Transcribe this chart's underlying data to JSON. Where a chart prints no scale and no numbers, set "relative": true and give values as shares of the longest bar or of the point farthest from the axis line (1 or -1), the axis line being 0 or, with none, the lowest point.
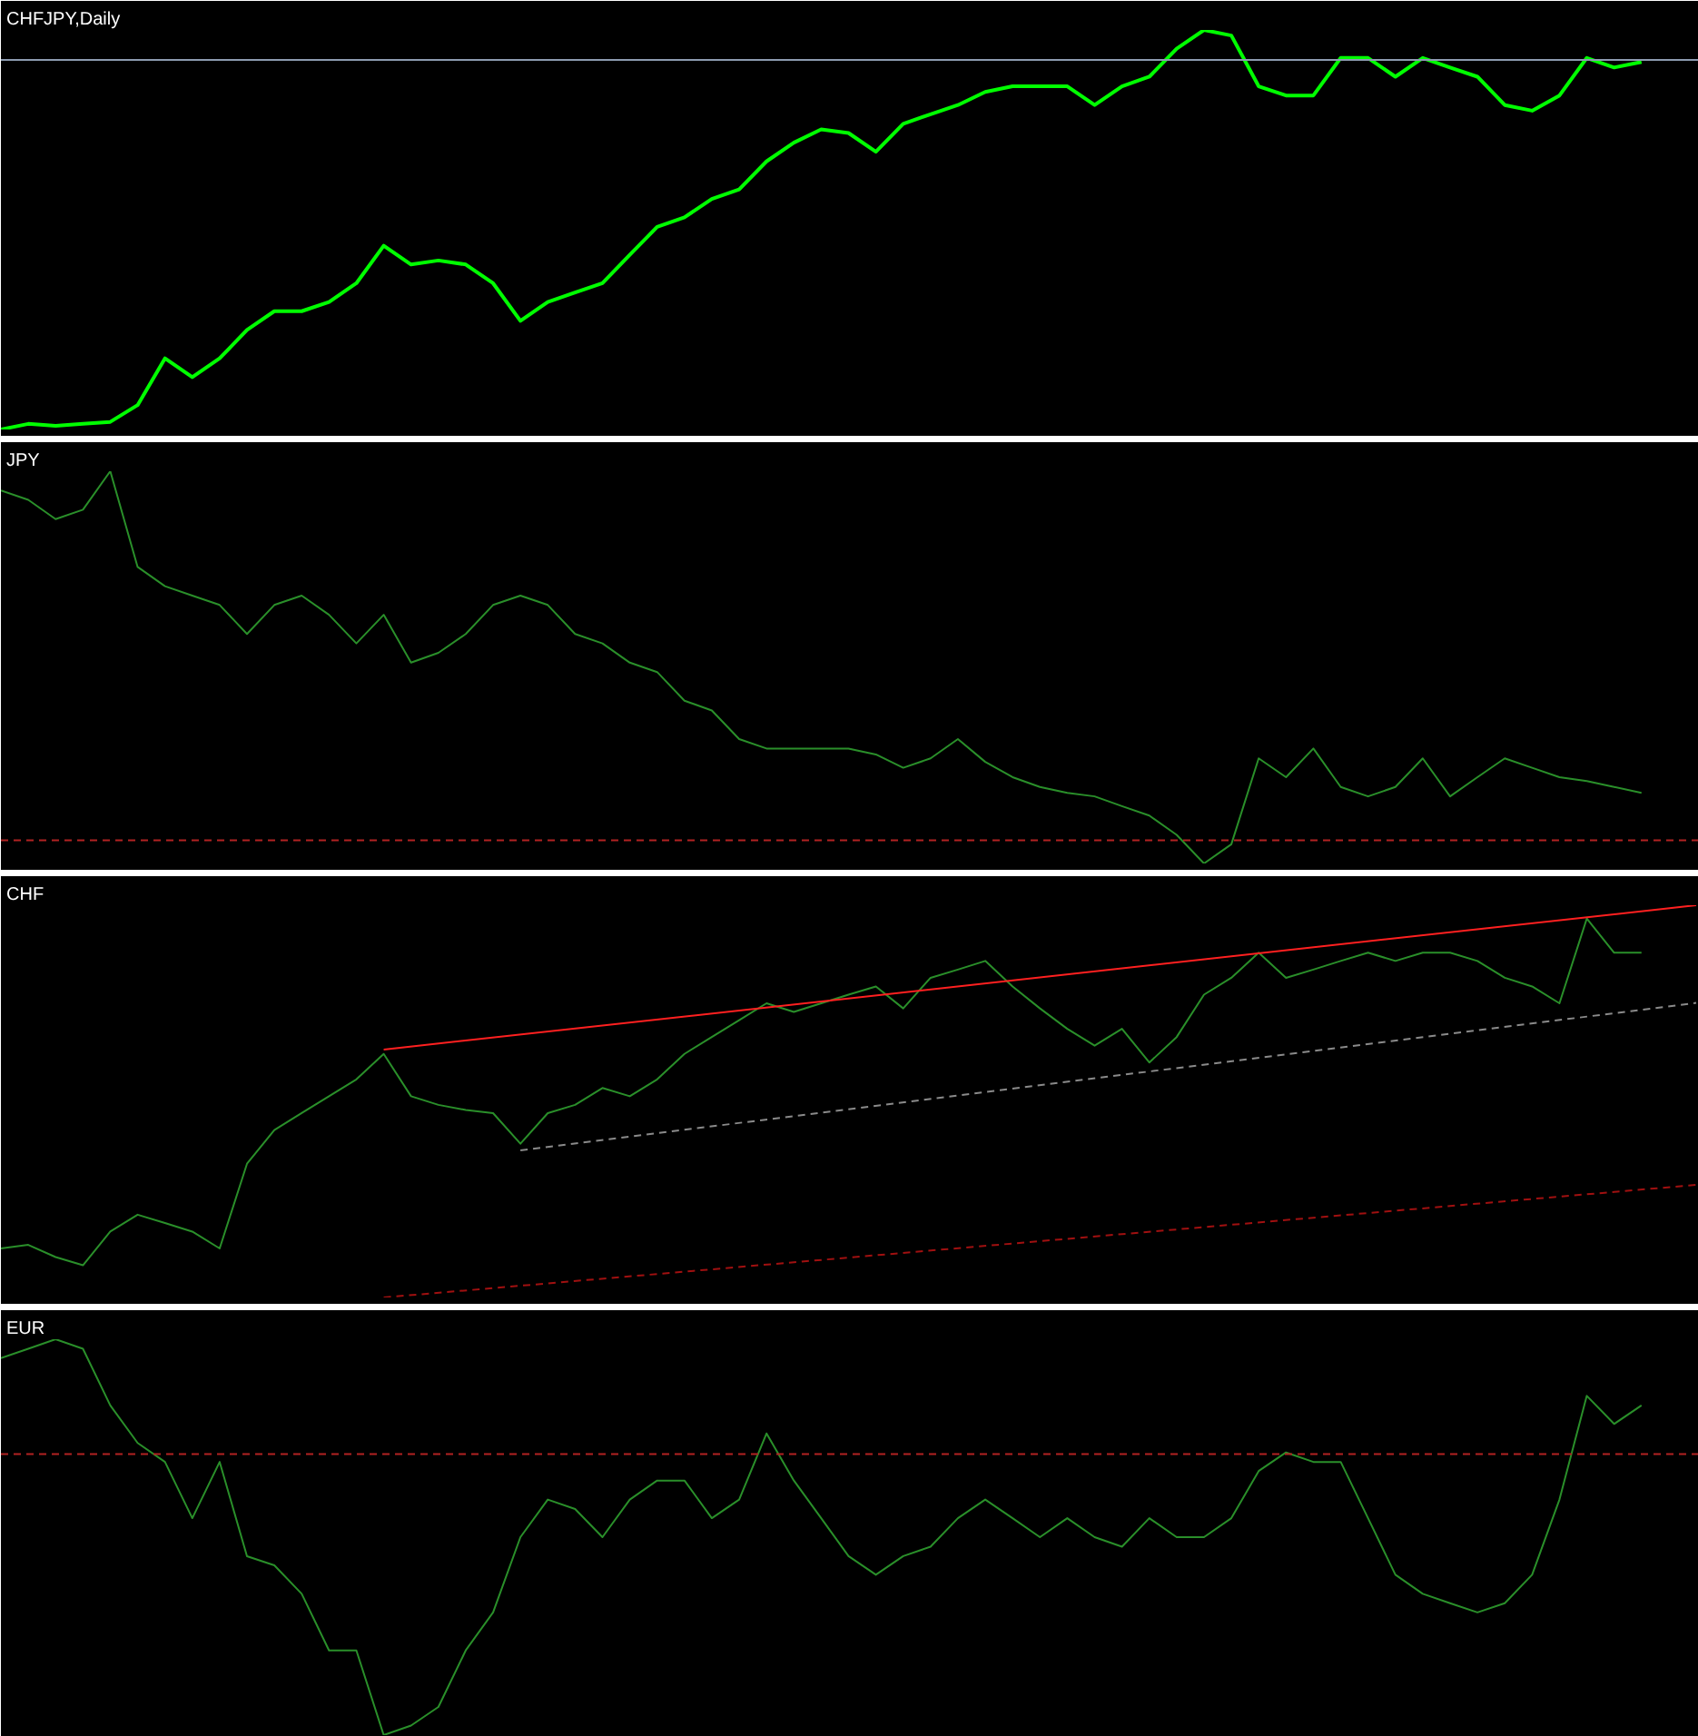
{
  "chart_data": [
    {
      "type": "line",
      "title": "CHFJPY,Daily",
      "relative": true,
      "categories": [
        null,
        null,
        null,
        null,
        null,
        null,
        null,
        null,
        null,
        null,
        null,
        null,
        null,
        null,
        null,
        null,
        null,
        null,
        null,
        null,
        null,
        null,
        null,
        null,
        null,
        null,
        null,
        null,
        null,
        null,
        null,
        null,
        null,
        null,
        null,
        null,
        null,
        null,
        null,
        null,
        null,
        null,
        null,
        null,
        null,
        null,
        null,
        null,
        null,
        null,
        null,
        null,
        null,
        null,
        null,
        null,
        null,
        null,
        null,
        null,
        null,
        null,
        null
      ],
      "series": [
        {
          "color": "#00ff00",
          "values": [
            0,
            0.014,
            0.009,
            0.014,
            0.019,
            0.061,
            0.178,
            0.131,
            0.178,
            0.249,
            0.296,
            0.296,
            0.319,
            0.366,
            0.46,
            0.413,
            0.423,
            0.413,
            0.366,
            0.272,
            0.319,
            0.343,
            0.366,
            0.437,
            0.507,
            0.531,
            0.577,
            0.601,
            0.671,
            0.718,
            0.751,
            0.742,
            0.695,
            0.765,
            0.789,
            0.812,
            0.845,
            0.859,
            0.859,
            0.859,
            0.812,
            0.859,
            0.883,
            0.953,
            1,
            0.986,
            0.859,
            0.836,
            0.836,
            0.93,
            0.93,
            0.883,
            0.93,
            0.906,
            0.883,
            0.812,
            0.798,
            0.836,
            0.93,
            0.906,
            0.92,
            null,
            null
          ]
        }
      ],
      "ref_lines": [
        {
          "axis": "y",
          "value": 0.925,
          "color": "#8c9bb0",
          "line_style": "solid"
        }
      ]
    },
    {
      "type": "line",
      "title": "JPY",
      "relative": true,
      "categories": [
        null,
        null,
        null,
        null,
        null,
        null,
        null,
        null,
        null,
        null,
        null,
        null,
        null,
        null,
        null,
        null,
        null,
        null,
        null,
        null,
        null,
        null,
        null,
        null,
        null,
        null,
        null,
        null,
        null,
        null,
        null,
        null,
        null,
        null,
        null,
        null,
        null,
        null,
        null,
        null,
        null,
        null,
        null,
        null,
        null,
        null,
        null,
        null,
        null,
        null,
        null,
        null,
        null,
        null,
        null,
        null,
        null,
        null,
        null,
        null,
        null,
        null,
        null
      ],
      "series": [
        {
          "color": "#2a8f2a",
          "values": [
            0.951,
            0.927,
            0.878,
            0.902,
            1,
            0.756,
            0.707,
            0.683,
            0.659,
            0.585,
            0.659,
            0.683,
            0.634,
            0.561,
            0.634,
            0.512,
            0.537,
            0.585,
            0.659,
            0.683,
            0.659,
            0.585,
            0.561,
            0.512,
            0.488,
            0.415,
            0.39,
            0.317,
            0.293,
            0.293,
            0.293,
            0.293,
            0.278,
            0.244,
            0.268,
            0.317,
            0.259,
            0.22,
            0.195,
            0.18,
            0.171,
            0.146,
            0.122,
            0.073,
            0,
            0.049,
            0.268,
            0.22,
            0.293,
            0.195,
            0.171,
            0.195,
            0.268,
            0.171,
            0.22,
            0.268,
            0.244,
            0.22,
            0.21,
            0.195,
            0.18,
            null,
            null
          ]
        }
      ],
      "ref_lines": [
        {
          "axis": "y",
          "value": 0.059,
          "color": "#b22222",
          "line_style": "dashed"
        }
      ]
    },
    {
      "type": "line",
      "title": "CHF",
      "relative": true,
      "categories": [
        null,
        null,
        null,
        null,
        null,
        null,
        null,
        null,
        null,
        null,
        null,
        null,
        null,
        null,
        null,
        null,
        null,
        null,
        null,
        null,
        null,
        null,
        null,
        null,
        null,
        null,
        null,
        null,
        null,
        null,
        null,
        null,
        null,
        null,
        null,
        null,
        null,
        null,
        null,
        null,
        null,
        null,
        null,
        null,
        null,
        null,
        null,
        null,
        null,
        null,
        null,
        null,
        null,
        null,
        null,
        null,
        null,
        null,
        null,
        null,
        null,
        null,
        null
      ],
      "series": [
        {
          "color": "#2a8f2a",
          "values": [
            0.125,
            0.134,
            0.103,
            0.082,
            0.168,
            0.211,
            0.19,
            0.168,
            0.125,
            0.341,
            0.427,
            0.47,
            0.513,
            0.556,
            0.621,
            0.513,
            0.491,
            0.478,
            0.47,
            0.392,
            0.47,
            0.491,
            0.534,
            0.513,
            0.556,
            0.621,
            0.664,
            0.707,
            0.75,
            0.728,
            0.75,
            0.772,
            0.793,
            0.737,
            0.815,
            0.836,
            0.858,
            0.793,
            0.737,
            0.685,
            0.642,
            0.685,
            0.599,
            0.664,
            0.772,
            0.815,
            0.879,
            0.815,
            0.836,
            0.858,
            0.879,
            0.858,
            0.879,
            0.879,
            0.858,
            0.815,
            0.793,
            0.75,
            0.966,
            0.879,
            0.879,
            null,
            null
          ]
        },
        {
          "color": "#ff2020",
          "line_style": "solid",
          "values": [
            null,
            null,
            null,
            null,
            null,
            null,
            null,
            null,
            null,
            null,
            null,
            null,
            null,
            null,
            0.632,
            null,
            null,
            null,
            null,
            null,
            null,
            null,
            null,
            null,
            null,
            null,
            null,
            null,
            null,
            null,
            null,
            null,
            null,
            null,
            null,
            null,
            null,
            null,
            null,
            null,
            null,
            null,
            null,
            null,
            null,
            null,
            null,
            null,
            null,
            null,
            null,
            null,
            null,
            null,
            null,
            null,
            null,
            null,
            null,
            null,
            null,
            null,
            1
          ]
        },
        {
          "color": "#8a8a8a",
          "line_style": "dashed",
          "values": [
            null,
            null,
            null,
            null,
            null,
            null,
            null,
            null,
            null,
            null,
            null,
            null,
            null,
            null,
            null,
            null,
            null,
            null,
            null,
            0.375,
            null,
            null,
            null,
            null,
            null,
            null,
            null,
            null,
            null,
            null,
            null,
            null,
            null,
            null,
            null,
            null,
            null,
            null,
            null,
            null,
            null,
            null,
            null,
            null,
            null,
            null,
            null,
            null,
            null,
            null,
            null,
            null,
            null,
            null,
            null,
            null,
            null,
            null,
            null,
            null,
            null,
            null,
            0.751
          ]
        },
        {
          "color": "#a01010",
          "line_style": "dashed",
          "values": [
            null,
            null,
            null,
            null,
            null,
            null,
            null,
            null,
            null,
            null,
            null,
            null,
            null,
            null,
            0,
            null,
            null,
            null,
            null,
            null,
            null,
            null,
            null,
            null,
            null,
            null,
            null,
            null,
            null,
            null,
            null,
            null,
            null,
            null,
            null,
            null,
            null,
            null,
            null,
            null,
            null,
            null,
            null,
            null,
            null,
            null,
            null,
            null,
            null,
            null,
            null,
            null,
            null,
            null,
            null,
            null,
            null,
            null,
            null,
            null,
            null,
            null,
            0.287
          ]
        }
      ]
    },
    {
      "type": "line",
      "title": "EUR",
      "relative": true,
      "categories": [
        null,
        null,
        null,
        null,
        null,
        null,
        null,
        null,
        null,
        null,
        null,
        null,
        null,
        null,
        null,
        null,
        null,
        null,
        null,
        null,
        null,
        null,
        null,
        null,
        null,
        null,
        null,
        null,
        null,
        null,
        null,
        null,
        null,
        null,
        null,
        null,
        null,
        null,
        null,
        null,
        null,
        null,
        null,
        null,
        null,
        null,
        null,
        null,
        null,
        null,
        null,
        null,
        null,
        null,
        null,
        null,
        null,
        null,
        null,
        null,
        null,
        null,
        null
      ],
      "series": [
        {
          "color": "#2a8f2a",
          "values": [
            0.952,
            0.976,
            1,
            0.976,
            0.833,
            0.738,
            0.69,
            0.548,
            0.69,
            0.452,
            0.429,
            0.357,
            0.214,
            0.214,
            0,
            0.024,
            0.071,
            0.214,
            0.31,
            0.5,
            0.595,
            0.571,
            0.5,
            0.595,
            0.643,
            0.643,
            0.548,
            0.595,
            0.762,
            0.643,
            0.548,
            0.452,
            0.405,
            0.452,
            0.476,
            0.548,
            0.595,
            0.548,
            0.5,
            0.548,
            0.5,
            0.476,
            0.548,
            0.5,
            0.5,
            0.548,
            0.667,
            0.714,
            0.69,
            0.69,
            0.548,
            0.405,
            0.357,
            0.333,
            0.31,
            0.333,
            0.405,
            0.595,
            0.857,
            0.786,
            0.833,
            null,
            null
          ]
        }
      ],
      "ref_lines": [
        {
          "axis": "y",
          "value": 0.71,
          "color": "#b22222",
          "line_style": "dashed"
        }
      ]
    }
  ]
}
